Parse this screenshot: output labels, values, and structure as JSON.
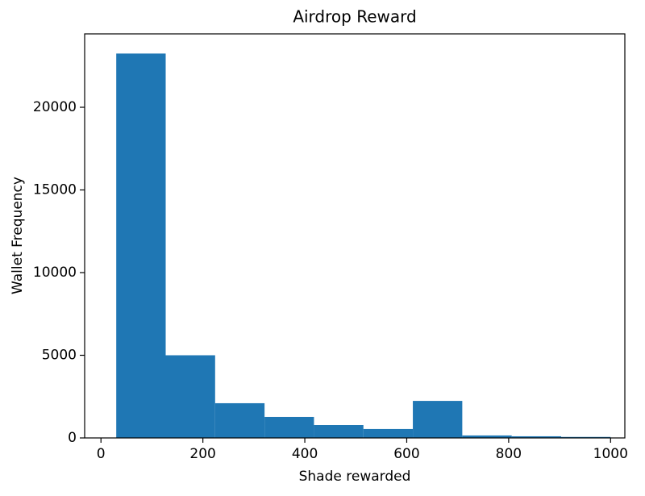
{
  "chart_data": {
    "type": "histogram",
    "title": "Airdrop Reward",
    "x_label": "Shade rewarded",
    "y_label": "Wallet Frequency",
    "bins": [
      30,
      127,
      224,
      321,
      418,
      515,
      612,
      709,
      806,
      903,
      1000
    ],
    "values": [
      23250,
      5000,
      2100,
      1270,
      780,
      540,
      2240,
      150,
      100,
      60
    ],
    "color": "#1f77b4",
    "xlim": [
      -32,
      1028
    ],
    "ylim": [
      0,
      24440
    ],
    "xticks": [
      0,
      200,
      400,
      600,
      800,
      1000
    ],
    "yticks": [
      0,
      5000,
      10000,
      15000,
      20000
    ]
  }
}
